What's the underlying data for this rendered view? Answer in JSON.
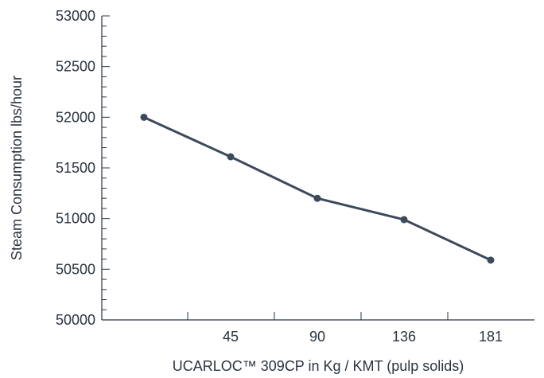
{
  "chart_data": {
    "type": "line",
    "title": "",
    "xlabel": "UCARLOC™ 309CP in Kg / KMT (pulp solids)",
    "ylabel": "Steam Consumption lbs/hour",
    "x_tick_labels": [
      "45",
      "90",
      "136",
      "181"
    ],
    "y_ticks": [
      50000,
      50500,
      51000,
      51500,
      52000,
      52500,
      53000
    ],
    "ylim": [
      50000,
      53000
    ],
    "grid": false,
    "series": [
      {
        "x": [
          "",
          "45",
          "90",
          "136",
          "181"
        ],
        "values": [
          52000,
          51610,
          51200,
          50990,
          50590
        ],
        "color": "#3c4a5c"
      }
    ]
  }
}
